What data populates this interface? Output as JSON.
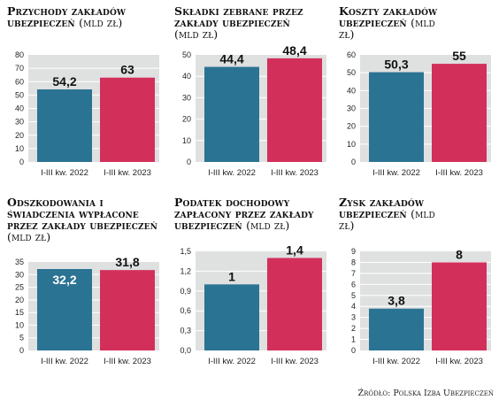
{
  "colors": {
    "bar_2022": "#2b7393",
    "bar_2023": "#d2305b",
    "plot_bg": "#dfe0e0",
    "grid": "#ffffff"
  },
  "source": "Źródło: Polska Izba Ubezpieczeń",
  "chart_data": [
    {
      "type": "bar",
      "title_main": "Przychody zakładów ubezpieczeń",
      "title_unit": "(mld zł)",
      "categories": [
        "I-III kw. 2022",
        "I-III kw. 2023"
      ],
      "values": [
        54.2,
        63
      ],
      "value_labels": [
        "54,2",
        "63"
      ],
      "ylim": [
        0,
        80
      ],
      "yticks": [
        0,
        10,
        20,
        30,
        40,
        50,
        60,
        70,
        80
      ],
      "ytick_labels": [
        "0",
        "10",
        "20",
        "30",
        "40",
        "50",
        "60",
        "70",
        "80"
      ],
      "label_inside": [
        false,
        false
      ]
    },
    {
      "type": "bar",
      "title_main": "Składki zebrane przez zakłady ubezpieczeń",
      "title_unit": "(mld zł)",
      "categories": [
        "I-III kw. 2022",
        "I-III kw. 2023"
      ],
      "values": [
        44.4,
        48.4
      ],
      "value_labels": [
        "44,4",
        "48,4"
      ],
      "ylim": [
        0,
        50
      ],
      "yticks": [
        0,
        10,
        20,
        30,
        40,
        50
      ],
      "ytick_labels": [
        "0",
        "10",
        "20",
        "30",
        "40",
        "50"
      ],
      "label_inside": [
        false,
        false
      ]
    },
    {
      "type": "bar",
      "title_main": "Koszty zakładów ubezpieczeń",
      "title_unit": "(mld zł)",
      "categories": [
        "I-III kw. 2022",
        "I-III kw. 2023"
      ],
      "values": [
        50.3,
        55
      ],
      "value_labels": [
        "50,3",
        "55"
      ],
      "ylim": [
        0,
        60
      ],
      "yticks": [
        0,
        10,
        20,
        30,
        40,
        50,
        60
      ],
      "ytick_labels": [
        "0",
        "10",
        "20",
        "30",
        "40",
        "50",
        "60"
      ],
      "label_inside": [
        false,
        false
      ]
    },
    {
      "type": "bar",
      "title_main": "Odszkodowania i świadczenia wypłacone przez zakłady ubezpieczeń",
      "title_unit": "(mld zł)",
      "categories": [
        "I-III kw. 2022",
        "I-III kw. 2023"
      ],
      "values": [
        32.2,
        31.8
      ],
      "value_labels": [
        "32,2",
        "31,8"
      ],
      "ylim": [
        0,
        35
      ],
      "yticks": [
        0,
        5,
        10,
        15,
        20,
        25,
        30,
        35
      ],
      "ytick_labels": [
        "0",
        "5",
        "10",
        "15",
        "20",
        "25",
        "30",
        "35"
      ],
      "label_inside": [
        true,
        false
      ]
    },
    {
      "type": "bar",
      "title_main": "Podatek dochodowy zapłacony przez zakłady ubezpieczeń",
      "title_unit": "(mld zł)",
      "categories": [
        "I-III kw. 2022",
        "I-III kw. 2023"
      ],
      "values": [
        1,
        1.4
      ],
      "value_labels": [
        "1",
        "1,4"
      ],
      "ylim": [
        0,
        1.5
      ],
      "yticks": [
        0,
        0.3,
        0.6,
        0.9,
        1.2,
        1.5
      ],
      "ytick_labels": [
        "0,0",
        "0,3",
        "0,6",
        "0,9",
        "1,2",
        "1,5"
      ],
      "label_inside": [
        false,
        false
      ]
    },
    {
      "type": "bar",
      "title_main": "Zysk zakładów ubezpieczeń",
      "title_unit": "(mld zł)",
      "categories": [
        "I-III kw. 2022",
        "I-III kw. 2023"
      ],
      "values": [
        3.8,
        8
      ],
      "value_labels": [
        "3,8",
        "8"
      ],
      "ylim": [
        0,
        9
      ],
      "yticks": [
        0,
        1,
        2,
        3,
        4,
        5,
        6,
        7,
        8,
        9
      ],
      "ytick_labels": [
        "0",
        "1",
        "2",
        "3",
        "4",
        "5",
        "6",
        "7",
        "8",
        "9"
      ],
      "label_inside": [
        false,
        false
      ]
    }
  ]
}
